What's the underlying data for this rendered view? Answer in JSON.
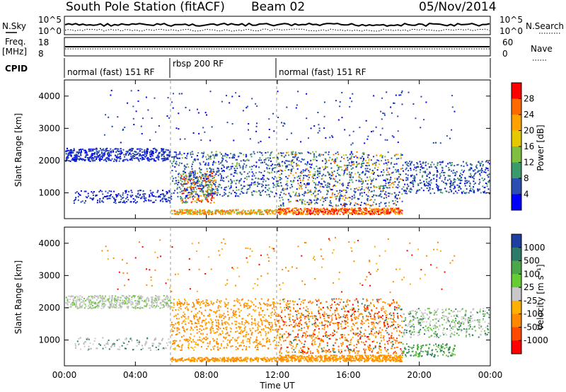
{
  "header": {
    "station": "South Pole Station (fitACF)",
    "beam": "Beam 02",
    "date": "05/Nov/2014"
  },
  "top_panels": {
    "nsky_label": "N.Sky",
    "nsky_ticks": [
      "10^5",
      "10^0"
    ],
    "nsearch_label": "N.Search",
    "nsearch_ticks": [
      "10^5",
      "10^0"
    ],
    "freq_label_1": "Freq.",
    "freq_label_2": "[MHz]",
    "freq_ticks": [
      "18",
      "8"
    ],
    "nave_label": "Nave",
    "nave_ticks": [
      "60",
      "0"
    ],
    "cpid_label": "CPID"
  },
  "cpid_segments": [
    {
      "label": "normal (fast) 151 RF",
      "start_hour": 0,
      "end_hour": 6
    },
    {
      "label": "rbsp 200 RF",
      "start_hour": 6,
      "end_hour": 12
    },
    {
      "label": "normal (fast) 151 RF",
      "start_hour": 12,
      "end_hour": 24
    }
  ],
  "chart_data": [
    {
      "type": "heatmap",
      "variable": "Power",
      "ylabel": "Slant Range [km]",
      "xlabel": "Time UT",
      "xlim_hours": [
        0,
        24
      ],
      "ylim_km": [
        200,
        4500
      ],
      "y_ticks": [
        1000,
        2000,
        3000,
        4000
      ],
      "x_ticks": [
        "00:00",
        "04:00",
        "08:00",
        "12:00",
        "16:00",
        "20:00",
        "00:00"
      ],
      "colorbar": {
        "label": "Power [dB]",
        "ticks": [
          "28",
          "24",
          "20",
          "16",
          "12",
          "8",
          "4"
        ],
        "colors": [
          "#ff0000",
          "#ff6a00",
          "#ffa200",
          "#e6c800",
          "#7fbf3f",
          "#3a9a6a",
          "#2a4fb0",
          "#0000ff"
        ]
      }
    },
    {
      "type": "heatmap",
      "variable": "Velocity",
      "ylabel": "Slant Range [km]",
      "xlabel": "Time UT",
      "xlim_hours": [
        0,
        24
      ],
      "ylim_km": [
        200,
        4500
      ],
      "y_ticks": [
        1000,
        2000,
        3000,
        4000
      ],
      "x_ticks": [
        "00:00",
        "04:00",
        "08:00",
        "12:00",
        "16:00",
        "20:00",
        "00:00"
      ],
      "colorbar": {
        "label": "Velocity [m s⁻¹]",
        "ticks": [
          "1000",
          "500",
          "100",
          "25",
          "-25",
          "-100",
          "-500",
          "-1000"
        ],
        "colors": [
          "#1f3fa0",
          "#2d7a6a",
          "#4aa84a",
          "#66cc33",
          "#c8c8c8",
          "#ffb000",
          "#ff8800",
          "#ff4a00",
          "#ff0000"
        ]
      }
    }
  ]
}
